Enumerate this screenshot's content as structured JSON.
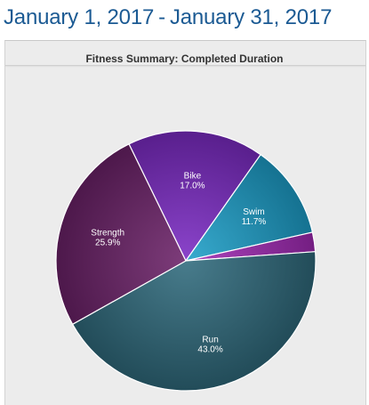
{
  "header": {
    "start_date": "January 1, 2017",
    "separator": "-",
    "end_date": "January 31, 2017"
  },
  "colors": {
    "header_text": "#1b5a93",
    "panel_bg": "#ececec"
  },
  "chart_data": {
    "type": "pie",
    "title": "Fitness Summary: Completed Duration",
    "slices": [
      {
        "name": "Bike",
        "value": 17.0,
        "label": "17.0%",
        "color": "#7b2bc4"
      },
      {
        "name": "Swim",
        "value": 11.7,
        "label": "11.7%",
        "color": "#1d9fc9"
      },
      {
        "name": "",
        "value": 2.4,
        "label": "",
        "color": "#a12ab4"
      },
      {
        "name": "Run",
        "value": 43.0,
        "label": "43.0%",
        "color": "#2f6a7c"
      },
      {
        "name": "Strength",
        "value": 25.9,
        "label": "25.9%",
        "color": "#6b2168"
      }
    ],
    "legend": "none"
  }
}
